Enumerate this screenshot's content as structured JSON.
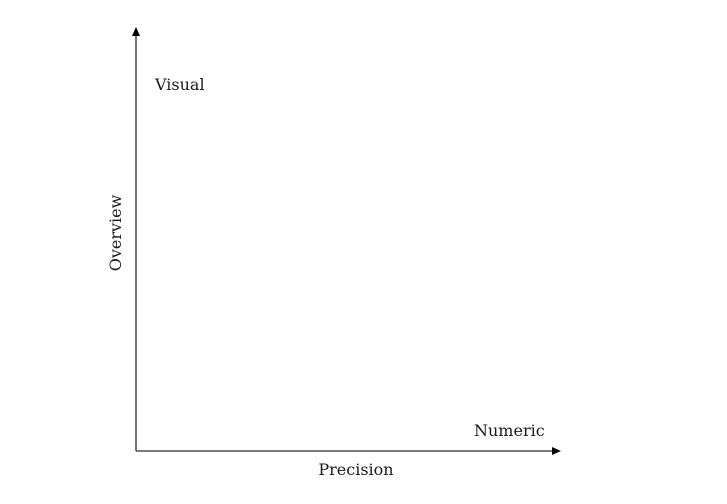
{
  "diagram": {
    "x_axis_label": "Precision",
    "y_axis_label": "Overview",
    "top_left_label": "Visual",
    "bottom_right_label": "Numeric"
  },
  "colors": {
    "axis": "#2a2a2a",
    "text": "#1a1a1a",
    "background": "#ffffff"
  }
}
